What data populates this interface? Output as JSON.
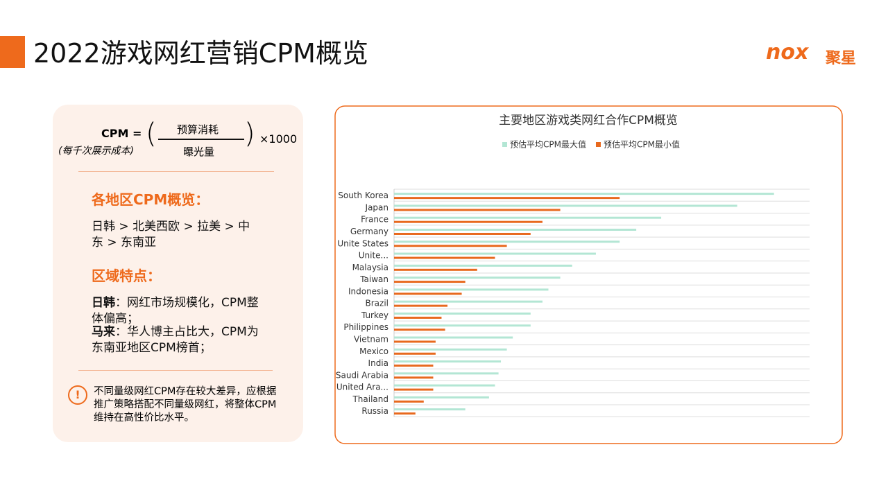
{
  "slide": {
    "title": "2022游戏网红营销CPM概览",
    "logo": {
      "mark": "nox",
      "name": "聚星"
    },
    "formula": {
      "lhs": "CPM =",
      "lhs_note": "(每千次展示成本)",
      "numerator": "预算消耗",
      "denominator": "曝光量",
      "factor": "×1000"
    },
    "sections": [
      {
        "heading": "各地区CPM概览：",
        "text": "日韩 > 北美西欧 > 拉美 > 中东 > 东南亚"
      },
      {
        "heading": "区域特点：",
        "items": [
          {
            "bold": "日韩",
            "text": "：网红市场规模化，CPM整体偏高；"
          },
          {
            "bold": "马来",
            "text": "：华人博主占比大，CPM为东南亚地区CPM榜首；"
          }
        ]
      }
    ],
    "note": "不同量级网红CPM存在较大差异，应根据推广策略搭配不同量级网红，将整体CPM维持在高性价比水平。"
  },
  "chart_data": {
    "type": "hbar",
    "title": "主要地区游戏类网红合作CPM概览",
    "categories": [
      "South Korea",
      "Japan",
      "France",
      "Germany",
      "Unite States",
      "Unite...",
      "Malaysia",
      "Taiwan",
      "Indonesia",
      "Brazil",
      "Turkey",
      "Philippines",
      "Vietnam",
      "Mexico",
      "India",
      "Saudi Arabia",
      "United Ara...",
      "Thailand",
      "Russia"
    ],
    "series": [
      {
        "name": "预估平均CPM最大值",
        "color": "#b3e6d4",
        "values": [
          32.0,
          28.9,
          22.5,
          20.4,
          19.0,
          17.0,
          15.0,
          14.0,
          13.0,
          12.5,
          11.5,
          11.5,
          10.0,
          9.5,
          9.0,
          8.8,
          8.5,
          8.0,
          6.0
        ]
      },
      {
        "name": "预估平均CPM最小值",
        "color": "#e8691e",
        "values": [
          19.0,
          14.0,
          12.5,
          11.5,
          9.5,
          8.5,
          7.0,
          6.0,
          5.7,
          4.5,
          4.0,
          4.3,
          3.5,
          3.5,
          3.3,
          3.3,
          3.3,
          2.5,
          1.8
        ]
      }
    ],
    "xlim": [
      0,
      35
    ],
    "legend": "top"
  }
}
